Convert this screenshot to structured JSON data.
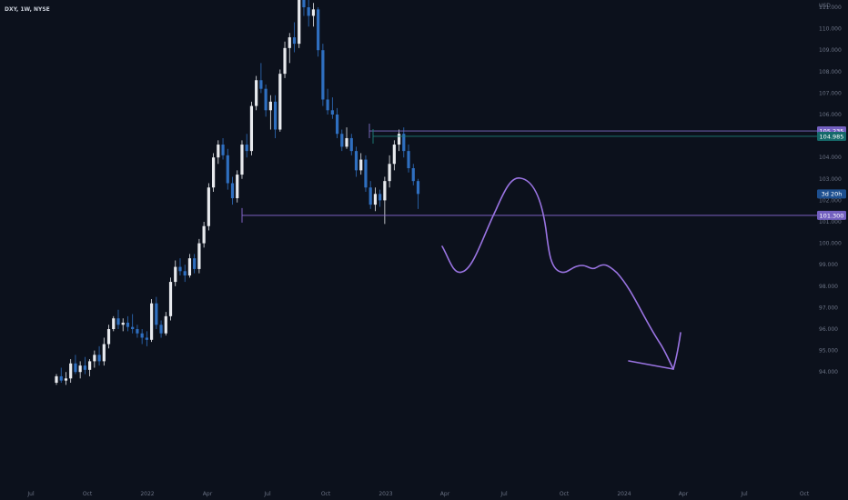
{
  "symbol": "DXY, 1W, NYSE",
  "currency_label": "USD",
  "chart_data": {
    "type": "candlestick",
    "title": "",
    "xlabel": "",
    "ylabel": "",
    "ylim": [
      93.4,
      111.8
    ],
    "x_ticks": [
      "Jul",
      "Oct",
      "2022",
      "Apr",
      "Jul",
      "Oct",
      "2023",
      "Apr",
      "Jul",
      "Oct",
      "2024",
      "Apr",
      "Jul",
      "Oct"
    ],
    "y_ticks": [
      "111.000",
      "110.000",
      "109.000",
      "108.000",
      "107.000",
      "106.000",
      "105.000",
      "104.000",
      "103.000",
      "102.000",
      "101.000",
      "100.000",
      "99.000",
      "98.000",
      "97.000",
      "96.000",
      "95.000",
      "94.000"
    ],
    "y_tick_values": [
      111,
      110,
      109,
      108,
      107,
      106,
      105,
      104,
      103,
      102,
      101,
      100,
      99,
      98,
      97,
      96,
      95,
      94
    ],
    "bull_color": "#e8eaee",
    "bear_color": "#2f6fc0",
    "candles": [
      {
        "o": 93.5,
        "h": 93.9,
        "l": 93.4,
        "c": 93.8
      },
      {
        "o": 93.8,
        "h": 94.2,
        "l": 93.5,
        "c": 93.6
      },
      {
        "o": 93.6,
        "h": 94.0,
        "l": 93.4,
        "c": 93.7
      },
      {
        "o": 93.7,
        "h": 94.6,
        "l": 93.5,
        "c": 94.4
      },
      {
        "o": 94.4,
        "h": 94.8,
        "l": 93.9,
        "c": 94.0
      },
      {
        "o": 94.0,
        "h": 94.5,
        "l": 93.7,
        "c": 94.3
      },
      {
        "o": 94.3,
        "h": 94.7,
        "l": 93.9,
        "c": 94.1
      },
      {
        "o": 94.1,
        "h": 94.6,
        "l": 93.8,
        "c": 94.5
      },
      {
        "o": 94.5,
        "h": 95.0,
        "l": 94.2,
        "c": 94.8
      },
      {
        "o": 94.8,
        "h": 95.2,
        "l": 94.3,
        "c": 94.5
      },
      {
        "o": 94.5,
        "h": 95.6,
        "l": 94.3,
        "c": 95.3
      },
      {
        "o": 95.3,
        "h": 96.2,
        "l": 95.1,
        "c": 96.0
      },
      {
        "o": 96.0,
        "h": 96.6,
        "l": 95.9,
        "c": 96.5
      },
      {
        "o": 96.5,
        "h": 96.9,
        "l": 96.0,
        "c": 96.2
      },
      {
        "o": 96.2,
        "h": 96.5,
        "l": 95.9,
        "c": 96.3
      },
      {
        "o": 96.3,
        "h": 96.6,
        "l": 95.9,
        "c": 96.1
      },
      {
        "o": 96.1,
        "h": 96.7,
        "l": 95.8,
        "c": 96.0
      },
      {
        "o": 96.0,
        "h": 96.2,
        "l": 95.6,
        "c": 95.8
      },
      {
        "o": 95.8,
        "h": 96.0,
        "l": 95.3,
        "c": 95.6
      },
      {
        "o": 95.6,
        "h": 95.9,
        "l": 95.2,
        "c": 95.5
      },
      {
        "o": 95.5,
        "h": 97.4,
        "l": 95.4,
        "c": 97.2
      },
      {
        "o": 97.2,
        "h": 97.5,
        "l": 96.0,
        "c": 96.2
      },
      {
        "o": 96.2,
        "h": 96.4,
        "l": 95.6,
        "c": 95.8
      },
      {
        "o": 95.8,
        "h": 96.8,
        "l": 95.7,
        "c": 96.6
      },
      {
        "o": 96.6,
        "h": 98.4,
        "l": 96.4,
        "c": 98.2
      },
      {
        "o": 98.2,
        "h": 99.2,
        "l": 98.0,
        "c": 98.9
      },
      {
        "o": 98.9,
        "h": 99.3,
        "l": 98.5,
        "c": 98.7
      },
      {
        "o": 98.7,
        "h": 99.0,
        "l": 98.2,
        "c": 98.5
      },
      {
        "o": 98.5,
        "h": 99.5,
        "l": 98.4,
        "c": 99.3
      },
      {
        "o": 99.3,
        "h": 99.5,
        "l": 98.6,
        "c": 98.8
      },
      {
        "o": 98.8,
        "h": 100.2,
        "l": 98.6,
        "c": 100.0
      },
      {
        "o": 100.0,
        "h": 101.0,
        "l": 99.8,
        "c": 100.8
      },
      {
        "o": 100.8,
        "h": 102.8,
        "l": 100.6,
        "c": 102.6
      },
      {
        "o": 102.6,
        "h": 104.2,
        "l": 102.4,
        "c": 104.0
      },
      {
        "o": 104.0,
        "h": 104.8,
        "l": 103.7,
        "c": 104.6
      },
      {
        "o": 104.6,
        "h": 104.9,
        "l": 103.9,
        "c": 104.1
      },
      {
        "o": 104.1,
        "h": 104.4,
        "l": 102.5,
        "c": 102.8
      },
      {
        "o": 102.8,
        "h": 103.1,
        "l": 101.8,
        "c": 102.1
      },
      {
        "o": 102.1,
        "h": 103.4,
        "l": 101.9,
        "c": 103.2
      },
      {
        "o": 103.2,
        "h": 104.8,
        "l": 103.0,
        "c": 104.6
      },
      {
        "o": 104.6,
        "h": 105.1,
        "l": 104.0,
        "c": 104.3
      },
      {
        "o": 104.3,
        "h": 106.6,
        "l": 104.1,
        "c": 106.4
      },
      {
        "o": 106.4,
        "h": 107.8,
        "l": 106.2,
        "c": 107.6
      },
      {
        "o": 107.6,
        "h": 108.4,
        "l": 107.0,
        "c": 107.2
      },
      {
        "o": 107.2,
        "h": 107.4,
        "l": 105.9,
        "c": 106.2
      },
      {
        "o": 106.2,
        "h": 106.9,
        "l": 105.3,
        "c": 106.6
      },
      {
        "o": 106.6,
        "h": 106.9,
        "l": 104.9,
        "c": 105.3
      },
      {
        "o": 105.3,
        "h": 108.1,
        "l": 105.2,
        "c": 107.9
      },
      {
        "o": 107.9,
        "h": 109.4,
        "l": 107.7,
        "c": 109.1
      },
      {
        "o": 109.1,
        "h": 109.8,
        "l": 108.4,
        "c": 109.6
      },
      {
        "o": 109.6,
        "h": 110.3,
        "l": 108.9,
        "c": 109.3
      },
      {
        "o": 109.3,
        "h": 111.6,
        "l": 109.1,
        "c": 111.4
      },
      {
        "o": 111.4,
        "h": 111.8,
        "l": 110.6,
        "c": 111.0
      },
      {
        "o": 111.0,
        "h": 111.5,
        "l": 110.1,
        "c": 110.6
      },
      {
        "o": 110.6,
        "h": 111.2,
        "l": 110.1,
        "c": 110.9
      },
      {
        "o": 110.9,
        "h": 111.0,
        "l": 108.7,
        "c": 109.0
      },
      {
        "o": 109.0,
        "h": 109.3,
        "l": 106.4,
        "c": 106.7
      },
      {
        "o": 106.7,
        "h": 107.2,
        "l": 106.0,
        "c": 106.2
      },
      {
        "o": 106.2,
        "h": 106.8,
        "l": 105.8,
        "c": 106.0
      },
      {
        "o": 106.0,
        "h": 106.3,
        "l": 104.9,
        "c": 105.1
      },
      {
        "o": 105.1,
        "h": 105.3,
        "l": 104.3,
        "c": 104.5
      },
      {
        "o": 104.5,
        "h": 105.4,
        "l": 104.4,
        "c": 104.9
      },
      {
        "o": 104.9,
        "h": 105.1,
        "l": 104.1,
        "c": 104.3
      },
      {
        "o": 104.3,
        "h": 104.5,
        "l": 103.1,
        "c": 103.4
      },
      {
        "o": 103.4,
        "h": 104.2,
        "l": 103.2,
        "c": 103.9
      },
      {
        "o": 103.9,
        "h": 104.1,
        "l": 102.4,
        "c": 102.6
      },
      {
        "o": 102.6,
        "h": 102.9,
        "l": 101.6,
        "c": 101.8
      },
      {
        "o": 101.8,
        "h": 102.6,
        "l": 101.5,
        "c": 102.3
      },
      {
        "o": 102.3,
        "h": 102.5,
        "l": 101.7,
        "c": 102.0
      },
      {
        "o": 102.0,
        "h": 103.1,
        "l": 100.9,
        "c": 102.9
      },
      {
        "o": 102.9,
        "h": 104.1,
        "l": 102.6,
        "c": 103.7
      },
      {
        "o": 103.7,
        "h": 104.8,
        "l": 103.4,
        "c": 104.6
      },
      {
        "o": 104.6,
        "h": 105.3,
        "l": 104.3,
        "c": 105.1
      },
      {
        "o": 105.1,
        "h": 105.4,
        "l": 104.0,
        "c": 104.3
      },
      {
        "o": 104.3,
        "h": 104.6,
        "l": 103.3,
        "c": 103.5
      },
      {
        "o": 103.5,
        "h": 103.7,
        "l": 102.7,
        "c": 102.9
      },
      {
        "o": 102.9,
        "h": 103.0,
        "l": 101.6,
        "c": 102.3
      }
    ],
    "levels": [
      {
        "value": 105.235,
        "label": "105.235",
        "color": "#7b6cc4"
      },
      {
        "value": 104.985,
        "label": "104.985",
        "color": "#1c7f79"
      },
      {
        "value": 101.3,
        "label": "101.300",
        "color": "#8d6cd8"
      }
    ],
    "countdown_label": "3d 20h",
    "countdown_value": 102.3
  }
}
